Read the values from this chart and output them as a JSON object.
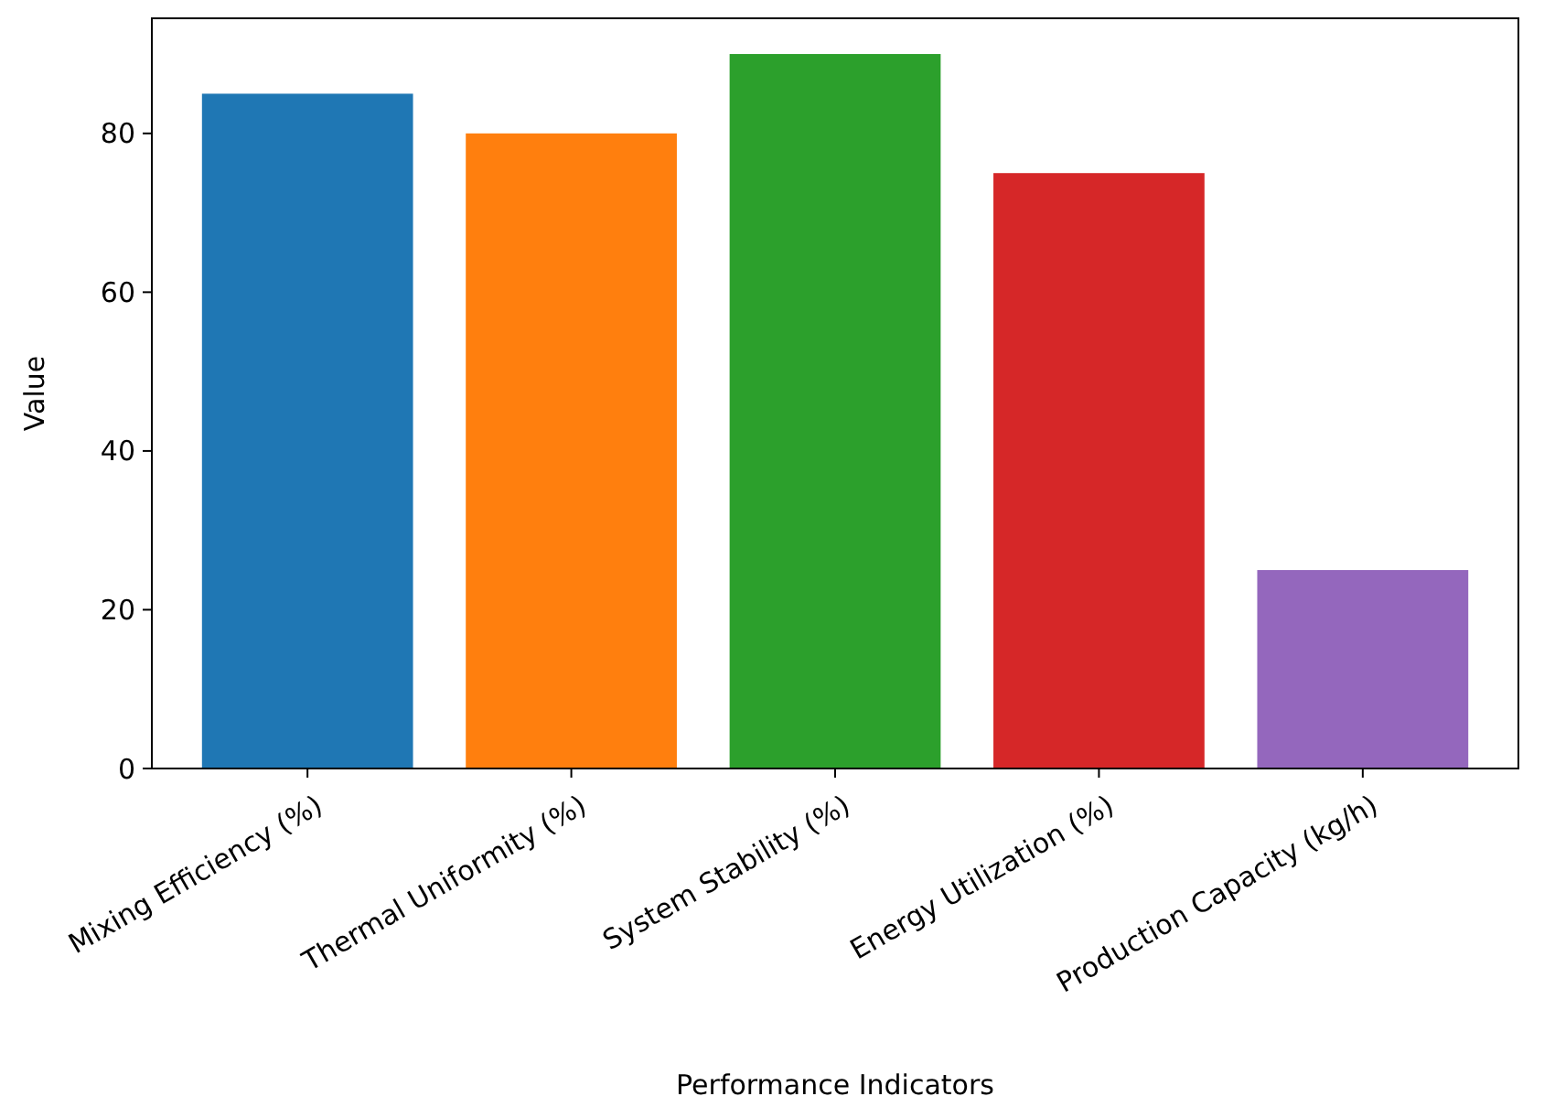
{
  "chart_data": {
    "type": "bar",
    "xlabel": "Performance Indicators",
    "ylabel": "Value",
    "categories": [
      "Mixing Efficiency (%)",
      "Thermal Uniformity (%)",
      "System Stability (%)",
      "Energy Utilization (%)",
      "Production Capacity (kg/h)"
    ],
    "values": [
      85,
      80,
      90,
      75,
      25
    ],
    "colors": [
      "#1f77b4",
      "#ff7f0e",
      "#2ca02c",
      "#d62728",
      "#9467bd"
    ],
    "ylim": [
      0,
      94.5
    ],
    "yticks": [
      0,
      20,
      40,
      60,
      80
    ]
  }
}
